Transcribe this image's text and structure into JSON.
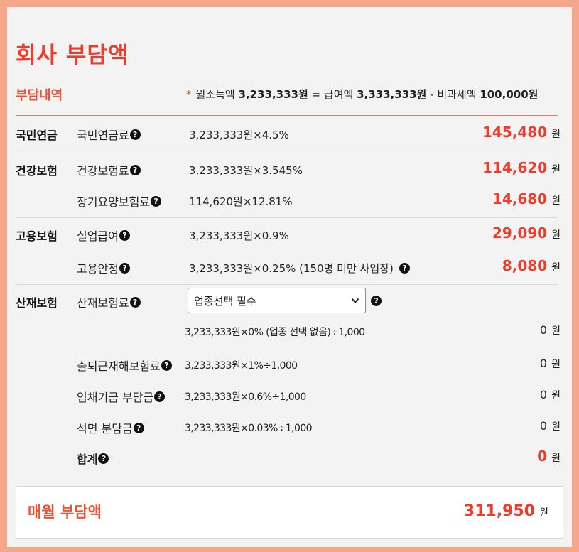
{
  "title": "회사 부담액",
  "breakdown_label": "부담내역",
  "income_note": {
    "star": "*",
    "prefix": "월소득액",
    "income": "3,233,333원",
    "eq": "=",
    "salary_label": "급여액",
    "salary": "3,333,333원",
    "minus": "-",
    "nontax_label": "비과세액",
    "nontax": "100,000원"
  },
  "help_glyph": "?",
  "won": "원",
  "rows": {
    "pension": {
      "category": "국민연금",
      "label": "국민연금료",
      "calc": "3,233,333원×4.5%",
      "amount": "145,480"
    },
    "health": {
      "category": "건강보험",
      "label": "건강보험료",
      "calc": "3,233,333원×3.545%",
      "amount": "114,620"
    },
    "longterm": {
      "label": "장기요양보험료",
      "calc": "114,620원×12.81%",
      "amount": "14,680"
    },
    "employment": {
      "category": "고용보험",
      "label": "실업급여",
      "calc": "3,233,333원×0.9%",
      "amount": "29,090"
    },
    "stability": {
      "label": "고용안정",
      "calc": "3,233,333원×0.25% (150명 미만 사업장)",
      "amount": "8,080"
    },
    "industrial": {
      "category": "산재보험",
      "label": "산재보험료",
      "select_value": "업종선택 필수",
      "calc": "3,233,333원×0% (업종 선택 없음)÷1,000",
      "amount": "0"
    },
    "commute": {
      "label": "출퇴근재해보험료",
      "calc": "3,233,333원×1%÷1,000",
      "amount": "0"
    },
    "wage": {
      "label": "임채기금 부담금",
      "calc": "3,233,333원×0.6%÷1,000",
      "amount": "0"
    },
    "asbestos": {
      "label": "석면 분담금",
      "calc": "3,233,333원×0.03%÷1,000",
      "amount": "0"
    },
    "subtotal": {
      "label": "합계",
      "amount": "0"
    }
  },
  "total": {
    "label": "매월 부담액",
    "amount": "311,950"
  },
  "colors": {
    "accent": "#ef3b2a",
    "frame": "#f6a68a",
    "divider": "#e2805e"
  }
}
